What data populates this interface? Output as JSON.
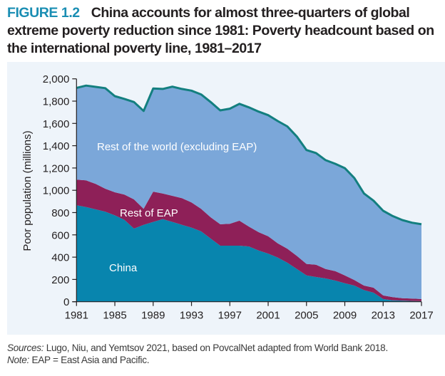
{
  "figure": {
    "number": "FIGURE 1.2",
    "title": "China accounts for almost three-quarters of global extreme poverty reduction since 1981: Poverty headcount based on the international poverty line, 1981–2017"
  },
  "footer": {
    "sources_label": "Sources:",
    "sources_text": " Lugo, Niu, and Yemtsov 2021, based on PovcalNet adapted from World Bank 2018.",
    "note_label": "Note:",
    "note_text": " EAP = East Asia and Pacific."
  },
  "colors": {
    "panel_bg": "#eef4fa",
    "rest_of_world": "#7ba7d9",
    "rest_of_eap": "#8e2058",
    "china": "#0885ae",
    "total_line": "#137f7f",
    "figure_number": "#1a8eb3"
  },
  "chart_data": {
    "type": "area",
    "stacked": true,
    "title": "China accounts for almost three-quarters of global extreme poverty reduction since 1981: Poverty headcount based on the international poverty line, 1981–2017",
    "xlabel": "",
    "ylabel": "Poor population (millions)",
    "xlim": [
      1981,
      2017
    ],
    "ylim": [
      0,
      2000
    ],
    "x_ticks": [
      "1981",
      "1985",
      "1989",
      "1993",
      "1997",
      "2001",
      "2005",
      "2009",
      "2013",
      "2017"
    ],
    "y_ticks": [
      "0",
      "200",
      "400",
      "600",
      "800",
      "1,000",
      "1,200",
      "1,400",
      "1,600",
      "1,800",
      "2,000"
    ],
    "grid": false,
    "legend": "inline labels",
    "x": [
      1981,
      1982,
      1983,
      1984,
      1985,
      1986,
      1987,
      1988,
      1989,
      1990,
      1991,
      1992,
      1993,
      1994,
      1995,
      1996,
      1997,
      1998,
      1999,
      2000,
      2001,
      2002,
      2003,
      2004,
      2005,
      2006,
      2007,
      2008,
      2009,
      2010,
      2011,
      2012,
      2013,
      2014,
      2015,
      2016,
      2017
    ],
    "series": [
      {
        "name": "China",
        "label": "China",
        "values": [
          865,
          850,
          829,
          808,
          775,
          735,
          656,
          690,
          716,
          741,
          716,
          690,
          665,
          631,
          567,
          503,
          503,
          503,
          496,
          460,
          432,
          396,
          350,
          294,
          236,
          222,
          209,
          190,
          166,
          145,
          104,
          81,
          24,
          13,
          10,
          7,
          5
        ]
      },
      {
        "name": "Rest of EAP",
        "label": "Rest of EAP",
        "values": [
          230,
          239,
          228,
          206,
          207,
          226,
          262,
          143,
          272,
          230,
          234,
          239,
          226,
          202,
          191,
          192,
          196,
          224,
          178,
          164,
          156,
          128,
          126,
          117,
          103,
          110,
          85,
          85,
          70,
          49,
          41,
          45,
          32,
          28,
          22,
          21,
          19
        ]
      },
      {
        "name": "Rest of the world (excluding EAP)",
        "label": "Rest of the  world (excluding EAP)",
        "values": [
          824,
          850,
          871,
          902,
          863,
          859,
          874,
          879,
          925,
          938,
          980,
          980,
          1003,
          1027,
          1034,
          1022,
          1033,
          1049,
          1070,
          1082,
          1086,
          1097,
          1097,
          1071,
          1022,
          1002,
          976,
          963,
          963,
          916,
          826,
          781,
          760,
          728,
          701,
          681,
          671
        ]
      }
    ],
    "totals": [
      1919,
      1939,
      1928,
      1916,
      1845,
      1820,
      1792,
      1712,
      1913,
      1909,
      1930,
      1909,
      1894,
      1860,
      1792,
      1717,
      1732,
      1776,
      1744,
      1706,
      1674,
      1621,
      1573,
      1482,
      1361,
      1334,
      1270,
      1238,
      1199,
      1110,
      971,
      907,
      816,
      769,
      733,
      709,
      695
    ]
  }
}
